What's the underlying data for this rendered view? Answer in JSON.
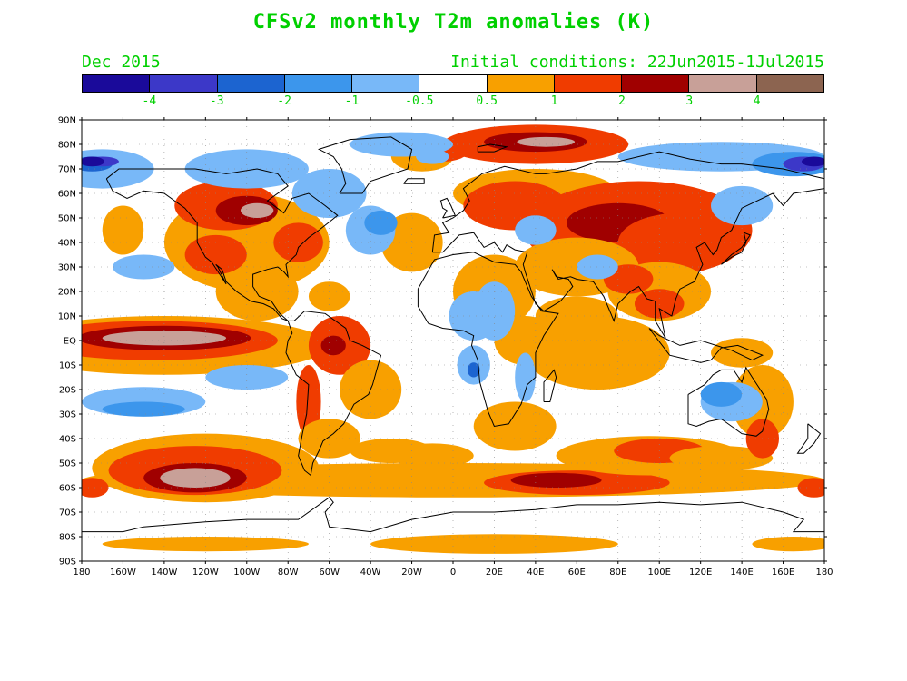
{
  "title": "CFSv2 monthly T2m anomalies (K)",
  "subtitle_left": "Dec 2015",
  "subtitle_right": "Initial conditions: 22Jun2015-1Jul2015",
  "colorbar": {
    "colors": [
      "#1a0a9a",
      "#3c38c8",
      "#1c64d0",
      "#3c96ec",
      "#78b8f8",
      "#ffffff",
      "#f8a000",
      "#f03c00",
      "#a00000",
      "#c8a098",
      "#8c6450"
    ],
    "labels": [
      "-4",
      "-3",
      "-2",
      "-1",
      "-0.5",
      "0.5",
      "1",
      "2",
      "3",
      "4"
    ]
  },
  "map": {
    "lat_ticks": [
      "90N",
      "80N",
      "70N",
      "60N",
      "50N",
      "40N",
      "30N",
      "20N",
      "10N",
      "EQ",
      "10S",
      "20S",
      "30S",
      "40S",
      "50S",
      "60S",
      "70S",
      "80S",
      "90S"
    ],
    "lon_ticks": [
      "180",
      "160W",
      "140W",
      "120W",
      "100W",
      "80W",
      "60W",
      "40W",
      "20W",
      "0",
      "20E",
      "40E",
      "60E",
      "80E",
      "100E",
      "120E",
      "140E",
      "160E",
      "180"
    ]
  }
}
